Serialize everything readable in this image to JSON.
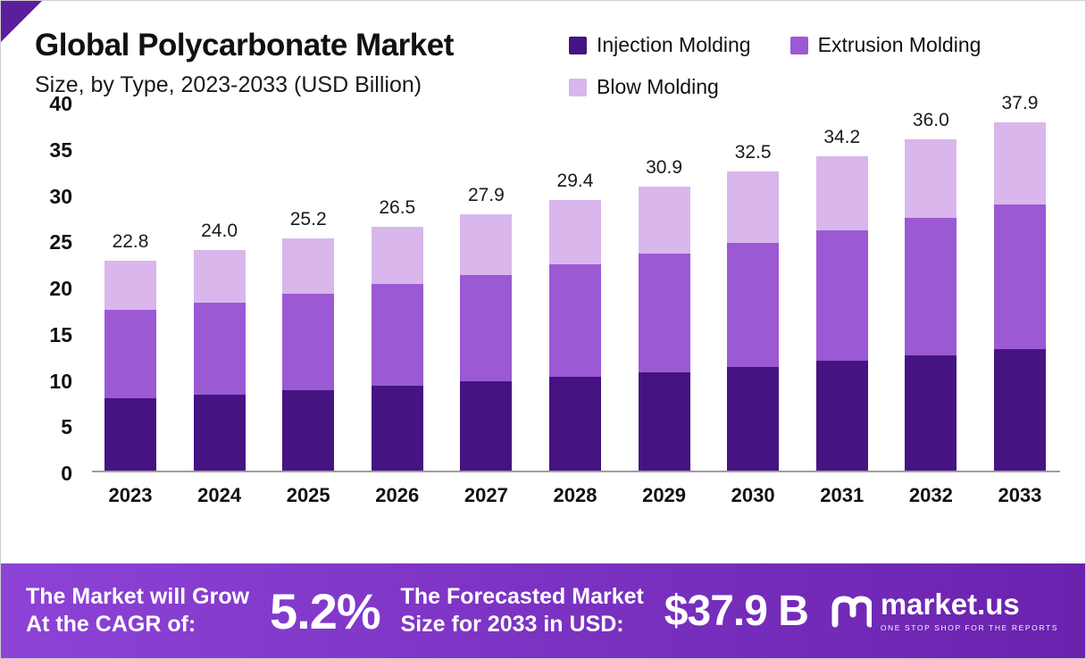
{
  "title": "Global Polycarbonate Market",
  "subtitle": "Size, by Type, 2023-2033 (USD Billion)",
  "legend": [
    {
      "label": "Injection Molding",
      "color": "#451382"
    },
    {
      "label": "Extrusion Molding",
      "color": "#9b59d3"
    },
    {
      "label": "Blow Molding",
      "color": "#d9b6ec"
    }
  ],
  "chart_data": {
    "type": "bar",
    "stacked": true,
    "title": "Global Polycarbonate Market Size, by Type, 2023-2033 (USD Billion)",
    "categories": [
      "2023",
      "2024",
      "2025",
      "2026",
      "2027",
      "2028",
      "2029",
      "2030",
      "2031",
      "2032",
      "2033"
    ],
    "series": [
      {
        "name": "Injection Molding",
        "color": "#451382",
        "values": [
          7.9,
          8.3,
          8.7,
          9.2,
          9.7,
          10.2,
          10.7,
          11.3,
          11.9,
          12.5,
          13.2
        ]
      },
      {
        "name": "Extrusion Molding",
        "color": "#9b59d3",
        "values": [
          9.6,
          10.0,
          10.5,
          11.1,
          11.6,
          12.2,
          12.9,
          13.5,
          14.2,
          15.0,
          15.7
        ]
      },
      {
        "name": "Blow Molding",
        "color": "#d9b6ec",
        "values": [
          5.3,
          5.7,
          6.0,
          6.2,
          6.6,
          7.0,
          7.3,
          7.7,
          8.1,
          8.5,
          9.0
        ]
      }
    ],
    "totals_labels": [
      "22.8",
      "24.0",
      "25.2",
      "26.5",
      "27.9",
      "29.4",
      "30.9",
      "32.5",
      "34.2",
      "36.0",
      "37.9"
    ],
    "xlabel": "",
    "ylabel": "",
    "ylim": [
      0,
      40
    ],
    "yticks": [
      0,
      5,
      10,
      15,
      20,
      25,
      30,
      35,
      40
    ],
    "grid": false,
    "legend_position": "top-right"
  },
  "footer": {
    "cagr_caption_line1": "The Market will Grow",
    "cagr_caption_line2": "At the CAGR of:",
    "cagr_value": "5.2%",
    "forecast_caption_line1": "The Forecasted Market",
    "forecast_caption_line2": "Size for 2033 in USD:",
    "forecast_value": "$37.9 B",
    "brand_name": "market.us",
    "brand_tagline": "ONE STOP SHOP FOR THE REPORTS",
    "banner_color_left": "#8d43d6",
    "banner_color_right": "#6a22ae"
  },
  "colors": {
    "accent_corner": "#5b1f9e",
    "axis_line": "#9d9d9d",
    "text": "#111111"
  }
}
